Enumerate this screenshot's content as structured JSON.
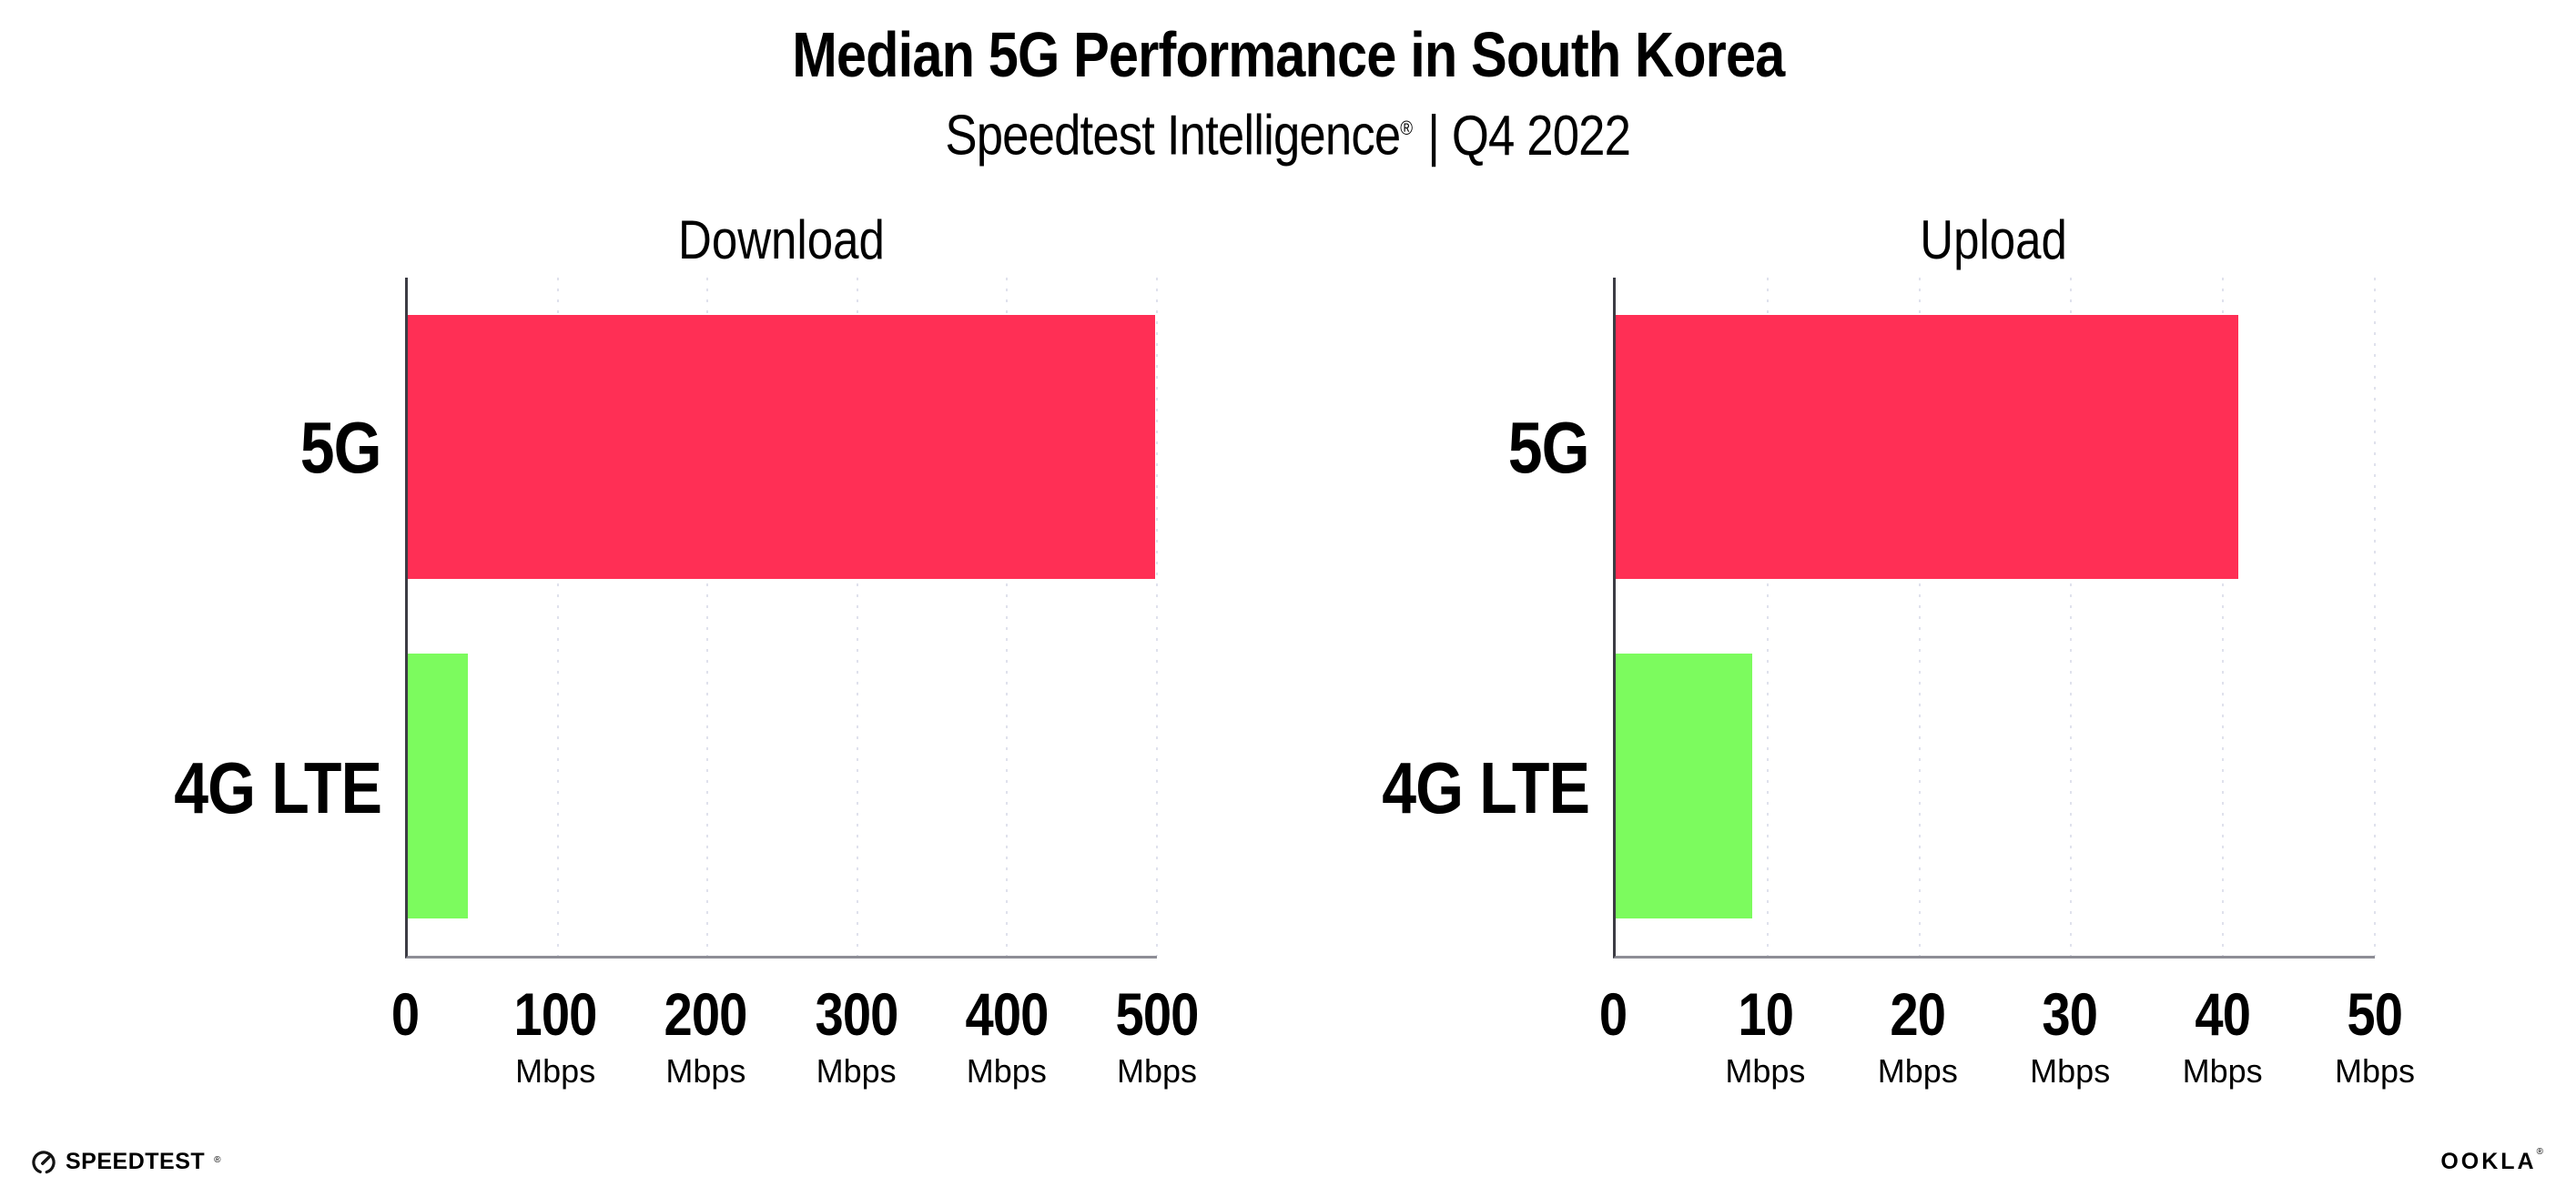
{
  "header": {
    "title": "Median 5G Performance in South Korea",
    "subtitle_brand": "Speedtest Intelligence",
    "subtitle_mark": "®",
    "subtitle_rest": "| Q4 2022"
  },
  "chart_data": [
    {
      "type": "bar",
      "orientation": "horizontal",
      "title": "Download",
      "categories": [
        "5G",
        "4G LTE"
      ],
      "values": [
        499,
        40
      ],
      "value_unit": "Mbps",
      "xlim": [
        0,
        500
      ],
      "xticks": [
        0,
        100,
        200,
        300,
        400,
        500
      ],
      "xtick_unit": "Mbps",
      "bar_colors": [
        "#ff2f55",
        "#7cfb5e"
      ],
      "grid": "dotted vertical gridlines at each tick",
      "legend": "none"
    },
    {
      "type": "bar",
      "orientation": "horizontal",
      "title": "Upload",
      "categories": [
        "5G",
        "4G LTE"
      ],
      "values": [
        41,
        9
      ],
      "value_unit": "Mbps",
      "xlim": [
        0,
        50
      ],
      "xticks": [
        0,
        10,
        20,
        30,
        40,
        50
      ],
      "xtick_unit": "Mbps",
      "bar_colors": [
        "#ff2f55",
        "#7cfb5e"
      ],
      "grid": "dotted vertical gridlines at each tick",
      "legend": "none"
    }
  ],
  "colors": {
    "bar_5g": "#ff2f55",
    "bar_4g_lte": "#7cfb5e",
    "y_axis": "#3c3c44",
    "x_axis": "#8e8e96",
    "gridline": "#dfe1ec",
    "background": "#ffffff",
    "text": "#000000"
  },
  "footer": {
    "speedtest_text": "SPEEDTEST",
    "speedtest_mark": "®",
    "ookla_text": "OOKLA",
    "ookla_mark": "®"
  }
}
